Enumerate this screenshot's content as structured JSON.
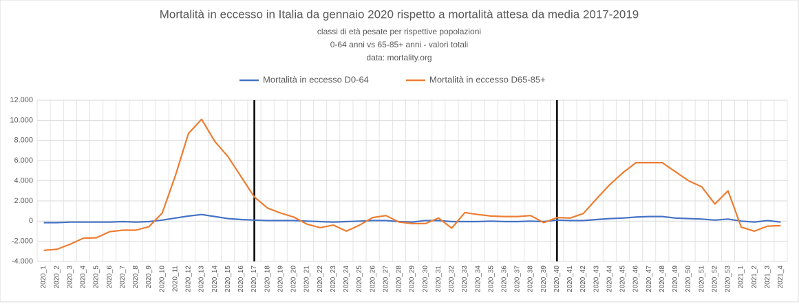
{
  "chart_data": {
    "type": "line",
    "title": "Mortalità in eccesso in Italia da gennaio 2020 rispetto a mortalità attesa da media 2017-2019",
    "subtitle": [
      "classi di età pesate per rispettive popolazioni",
      "0-64 anni vs 65-85+ anni - valori totali",
      "data: mortality.org"
    ],
    "categories": [
      "2020_1",
      "2020_2",
      "2020_3",
      "2020_4",
      "2020_5",
      "2020_6",
      "2020_7",
      "2020_8",
      "2020_9",
      "2020_10",
      "2020_11",
      "2020_12",
      "2020_13",
      "2020_14",
      "2020_15",
      "2020_16",
      "2020_17",
      "2020_18",
      "2020_19",
      "2020_20",
      "2020_21",
      "2020_22",
      "2020_23",
      "2020_24",
      "2020_25",
      "2020_26",
      "2020_27",
      "2020_28",
      "2020_29",
      "2020_30",
      "2020_31",
      "2020_32",
      "2020_33",
      "2020_34",
      "2020_35",
      "2020_36",
      "2020_37",
      "2020_38",
      "2020_39",
      "2020_40",
      "2020_41",
      "2020_42",
      "2020_43",
      "2020_44",
      "2020_45",
      "2020_46",
      "2020_47",
      "2020_48",
      "2020_49",
      "2020_50",
      "2020_51",
      "2020_52",
      "2020_53",
      "2021_1",
      "2021_2",
      "2021_3",
      "2021_4"
    ],
    "series": [
      {
        "name": "Mortalità in eccesso D0-64",
        "color": "#4472c4",
        "values": [
          -150,
          -150,
          -100,
          -100,
          -100,
          -100,
          -50,
          -100,
          -50,
          100,
          300,
          500,
          650,
          450,
          250,
          150,
          100,
          50,
          50,
          50,
          0,
          -50,
          -100,
          -50,
          0,
          50,
          50,
          -50,
          -100,
          50,
          50,
          -50,
          -50,
          -50,
          0,
          -50,
          -50,
          0,
          -50,
          100,
          50,
          50,
          150,
          250,
          300,
          400,
          450,
          450,
          300,
          250,
          200,
          100,
          200,
          0,
          -100,
          50,
          -100
        ]
      },
      {
        "name": "Mortalità in eccesso D65-85+",
        "color": "#ed7d31",
        "values": [
          -2900,
          -2800,
          -2300,
          -1700,
          -1650,
          -1050,
          -900,
          -900,
          -550,
          800,
          4500,
          8700,
          10100,
          7900,
          6400,
          4400,
          2400,
          1300,
          800,
          400,
          -300,
          -650,
          -400,
          -1000,
          -400,
          350,
          550,
          -100,
          -250,
          -250,
          300,
          -700,
          850,
          650,
          500,
          450,
          450,
          550,
          -150,
          350,
          300,
          750,
          2200,
          3600,
          4800,
          5800,
          5800,
          5800,
          4900,
          4000,
          3400,
          1700,
          3000,
          -600,
          -1000,
          -500,
          -450
        ]
      }
    ],
    "ylim": [
      -4000,
      12000
    ],
    "yticks": [
      {
        "value": -4000,
        "label": "-4.000"
      },
      {
        "value": -2000,
        "label": "-2.000"
      },
      0,
      {
        "value": 2000,
        "label": "2.000"
      },
      {
        "value": 4000,
        "label": "4.000"
      },
      {
        "value": 6000,
        "label": "6.000"
      },
      {
        "value": 8000,
        "label": "8.000"
      },
      {
        "value": 10000,
        "label": "10.000"
      },
      {
        "value": 12000,
        "label": "12.000"
      }
    ],
    "grid": true,
    "legend": "top",
    "vertical_lines": [
      "2020_17",
      "2020_40"
    ]
  }
}
